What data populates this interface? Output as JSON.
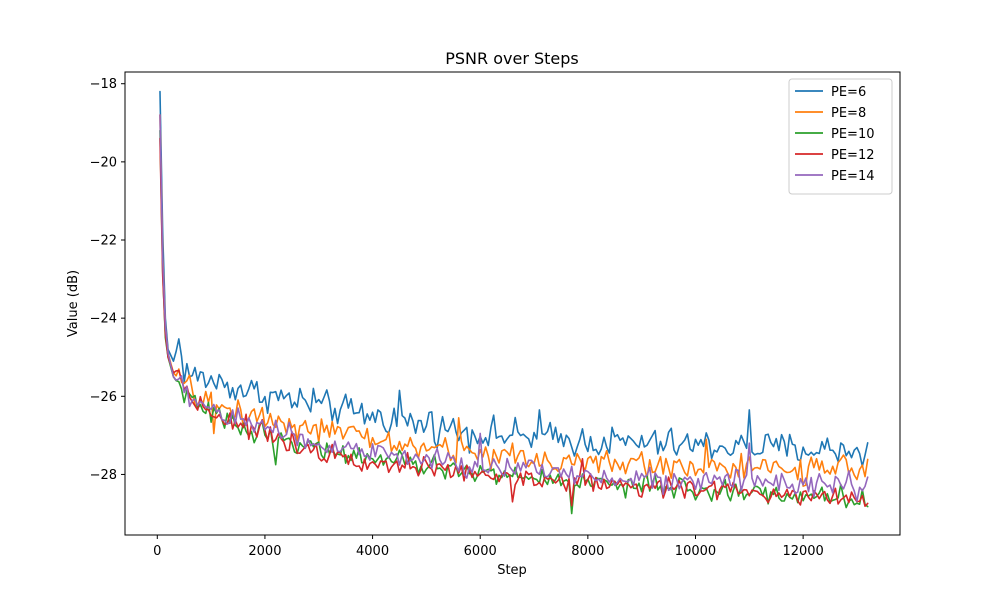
{
  "chart_data": {
    "type": "line",
    "title": "PSNR over Steps",
    "xlabel": "Step",
    "ylabel": "Value (dB)",
    "xlim": [
      -600,
      13800
    ],
    "ylim": [
      -29.55,
      -17.7
    ],
    "xticks": [
      0,
      2000,
      4000,
      6000,
      8000,
      10000,
      12000
    ],
    "xtick_labels": [
      "0",
      "2000",
      "4000",
      "6000",
      "8000",
      "10000",
      "12000"
    ],
    "yticks": [
      -18,
      -20,
      -22,
      -24,
      -26,
      -28
    ],
    "ytick_labels": [
      "−18",
      "−20",
      "−22",
      "−24",
      "−26",
      "−28"
    ],
    "grid": false,
    "legend_position": "top-right",
    "x_start": 50,
    "x_end": 13200,
    "series": [
      {
        "name": "PE=6",
        "color": "#1f77b4",
        "keypoints": [
          [
            50,
            -18.2
          ],
          [
            100,
            -21.8
          ],
          [
            150,
            -24
          ],
          [
            200,
            -24.8
          ],
          [
            300,
            -25.1
          ],
          [
            400,
            -24.6
          ],
          [
            500,
            -25.3
          ],
          [
            700,
            -25.5
          ],
          [
            1000,
            -25.6
          ],
          [
            1500,
            -25.8
          ],
          [
            2000,
            -25.95
          ],
          [
            3000,
            -26.25
          ],
          [
            4000,
            -26.5
          ],
          [
            5000,
            -26.75
          ],
          [
            6000,
            -26.95
          ],
          [
            7000,
            -27.05
          ],
          [
            8000,
            -27.15
          ],
          [
            9000,
            -27.2
          ],
          [
            10000,
            -27.25
          ],
          [
            11000,
            -27.3
          ],
          [
            12000,
            -27.35
          ],
          [
            13200,
            -27.4
          ]
        ],
        "noise": 0.2,
        "spikes": [
          [
            2900,
            -25.8
          ],
          [
            4500,
            -25.85
          ],
          [
            5100,
            -26.4
          ],
          [
            7100,
            -26.35
          ],
          [
            11000,
            -26.35
          ]
        ]
      },
      {
        "name": "PE=8",
        "color": "#ff7f0e",
        "keypoints": [
          [
            50,
            -18.8
          ],
          [
            100,
            -22.4
          ],
          [
            150,
            -24.2
          ],
          [
            200,
            -24.9
          ],
          [
            300,
            -25.4
          ],
          [
            500,
            -25.7
          ],
          [
            700,
            -25.95
          ],
          [
            1000,
            -26.15
          ],
          [
            1500,
            -26.4
          ],
          [
            2000,
            -26.55
          ],
          [
            3000,
            -26.85
          ],
          [
            4000,
            -27.1
          ],
          [
            5000,
            -27.35
          ],
          [
            6000,
            -27.45
          ],
          [
            7000,
            -27.6
          ],
          [
            8000,
            -27.7
          ],
          [
            9000,
            -27.75
          ],
          [
            10000,
            -27.8
          ],
          [
            11000,
            -27.85
          ],
          [
            12000,
            -27.9
          ],
          [
            13200,
            -27.9
          ]
        ],
        "noise": 0.17,
        "spikes": [
          [
            1050,
            -26.95
          ],
          [
            5600,
            -26.55
          ],
          [
            10200,
            -27.1
          ]
        ]
      },
      {
        "name": "PE=10",
        "color": "#2ca02c",
        "keypoints": [
          [
            50,
            -19.2
          ],
          [
            100,
            -22.8
          ],
          [
            150,
            -24.5
          ],
          [
            200,
            -25.0
          ],
          [
            300,
            -25.5
          ],
          [
            500,
            -25.9
          ],
          [
            700,
            -26.2
          ],
          [
            1000,
            -26.45
          ],
          [
            1500,
            -26.75
          ],
          [
            2000,
            -26.95
          ],
          [
            3000,
            -27.35
          ],
          [
            4000,
            -27.6
          ],
          [
            5000,
            -27.8
          ],
          [
            6000,
            -27.95
          ],
          [
            7000,
            -28.1
          ],
          [
            8000,
            -28.2
          ],
          [
            9000,
            -28.3
          ],
          [
            10000,
            -28.4
          ],
          [
            11000,
            -28.45
          ],
          [
            12000,
            -28.55
          ],
          [
            13200,
            -28.6
          ]
        ],
        "noise": 0.13,
        "spikes": [
          [
            2200,
            -27.75
          ],
          [
            7700,
            -29.0
          ],
          [
            10000,
            -28.65
          ]
        ]
      },
      {
        "name": "PE=12",
        "color": "#d62728",
        "keypoints": [
          [
            50,
            -19.4
          ],
          [
            100,
            -22.9
          ],
          [
            150,
            -24.4
          ],
          [
            200,
            -25.0
          ],
          [
            300,
            -25.4
          ],
          [
            400,
            -25.3
          ],
          [
            500,
            -25.8
          ],
          [
            700,
            -26.1
          ],
          [
            1000,
            -26.4
          ],
          [
            1500,
            -26.7
          ],
          [
            2000,
            -26.95
          ],
          [
            3000,
            -27.4
          ],
          [
            4000,
            -27.65
          ],
          [
            5000,
            -27.85
          ],
          [
            6000,
            -28.0
          ],
          [
            7000,
            -28.1
          ],
          [
            8000,
            -28.2
          ],
          [
            9000,
            -28.3
          ],
          [
            10000,
            -28.35
          ],
          [
            11000,
            -28.45
          ],
          [
            12000,
            -28.5
          ],
          [
            13200,
            -28.6
          ]
        ],
        "noise": 0.13,
        "spikes": [
          [
            6600,
            -28.7
          ],
          [
            7700,
            -28.8
          ],
          [
            7900,
            -27.6
          ]
        ]
      },
      {
        "name": "PE=14",
        "color": "#9467bd",
        "keypoints": [
          [
            50,
            -18.8
          ],
          [
            100,
            -22.5
          ],
          [
            150,
            -24.2
          ],
          [
            200,
            -24.9
          ],
          [
            300,
            -25.5
          ],
          [
            500,
            -25.85
          ],
          [
            700,
            -26.1
          ],
          [
            1000,
            -26.35
          ],
          [
            1500,
            -26.6
          ],
          [
            2000,
            -26.8
          ],
          [
            3000,
            -27.2
          ],
          [
            4000,
            -27.45
          ],
          [
            5000,
            -27.65
          ],
          [
            6000,
            -27.8
          ],
          [
            7000,
            -27.9
          ],
          [
            8000,
            -28.0
          ],
          [
            9000,
            -28.1
          ],
          [
            10000,
            -28.15
          ],
          [
            11000,
            -28.2
          ],
          [
            12000,
            -28.25
          ],
          [
            13200,
            -28.3
          ]
        ],
        "noise": 0.15,
        "spikes": [
          [
            1500,
            -26.3
          ],
          [
            6000,
            -26.95
          ],
          [
            11000,
            -27.2
          ]
        ]
      }
    ]
  }
}
